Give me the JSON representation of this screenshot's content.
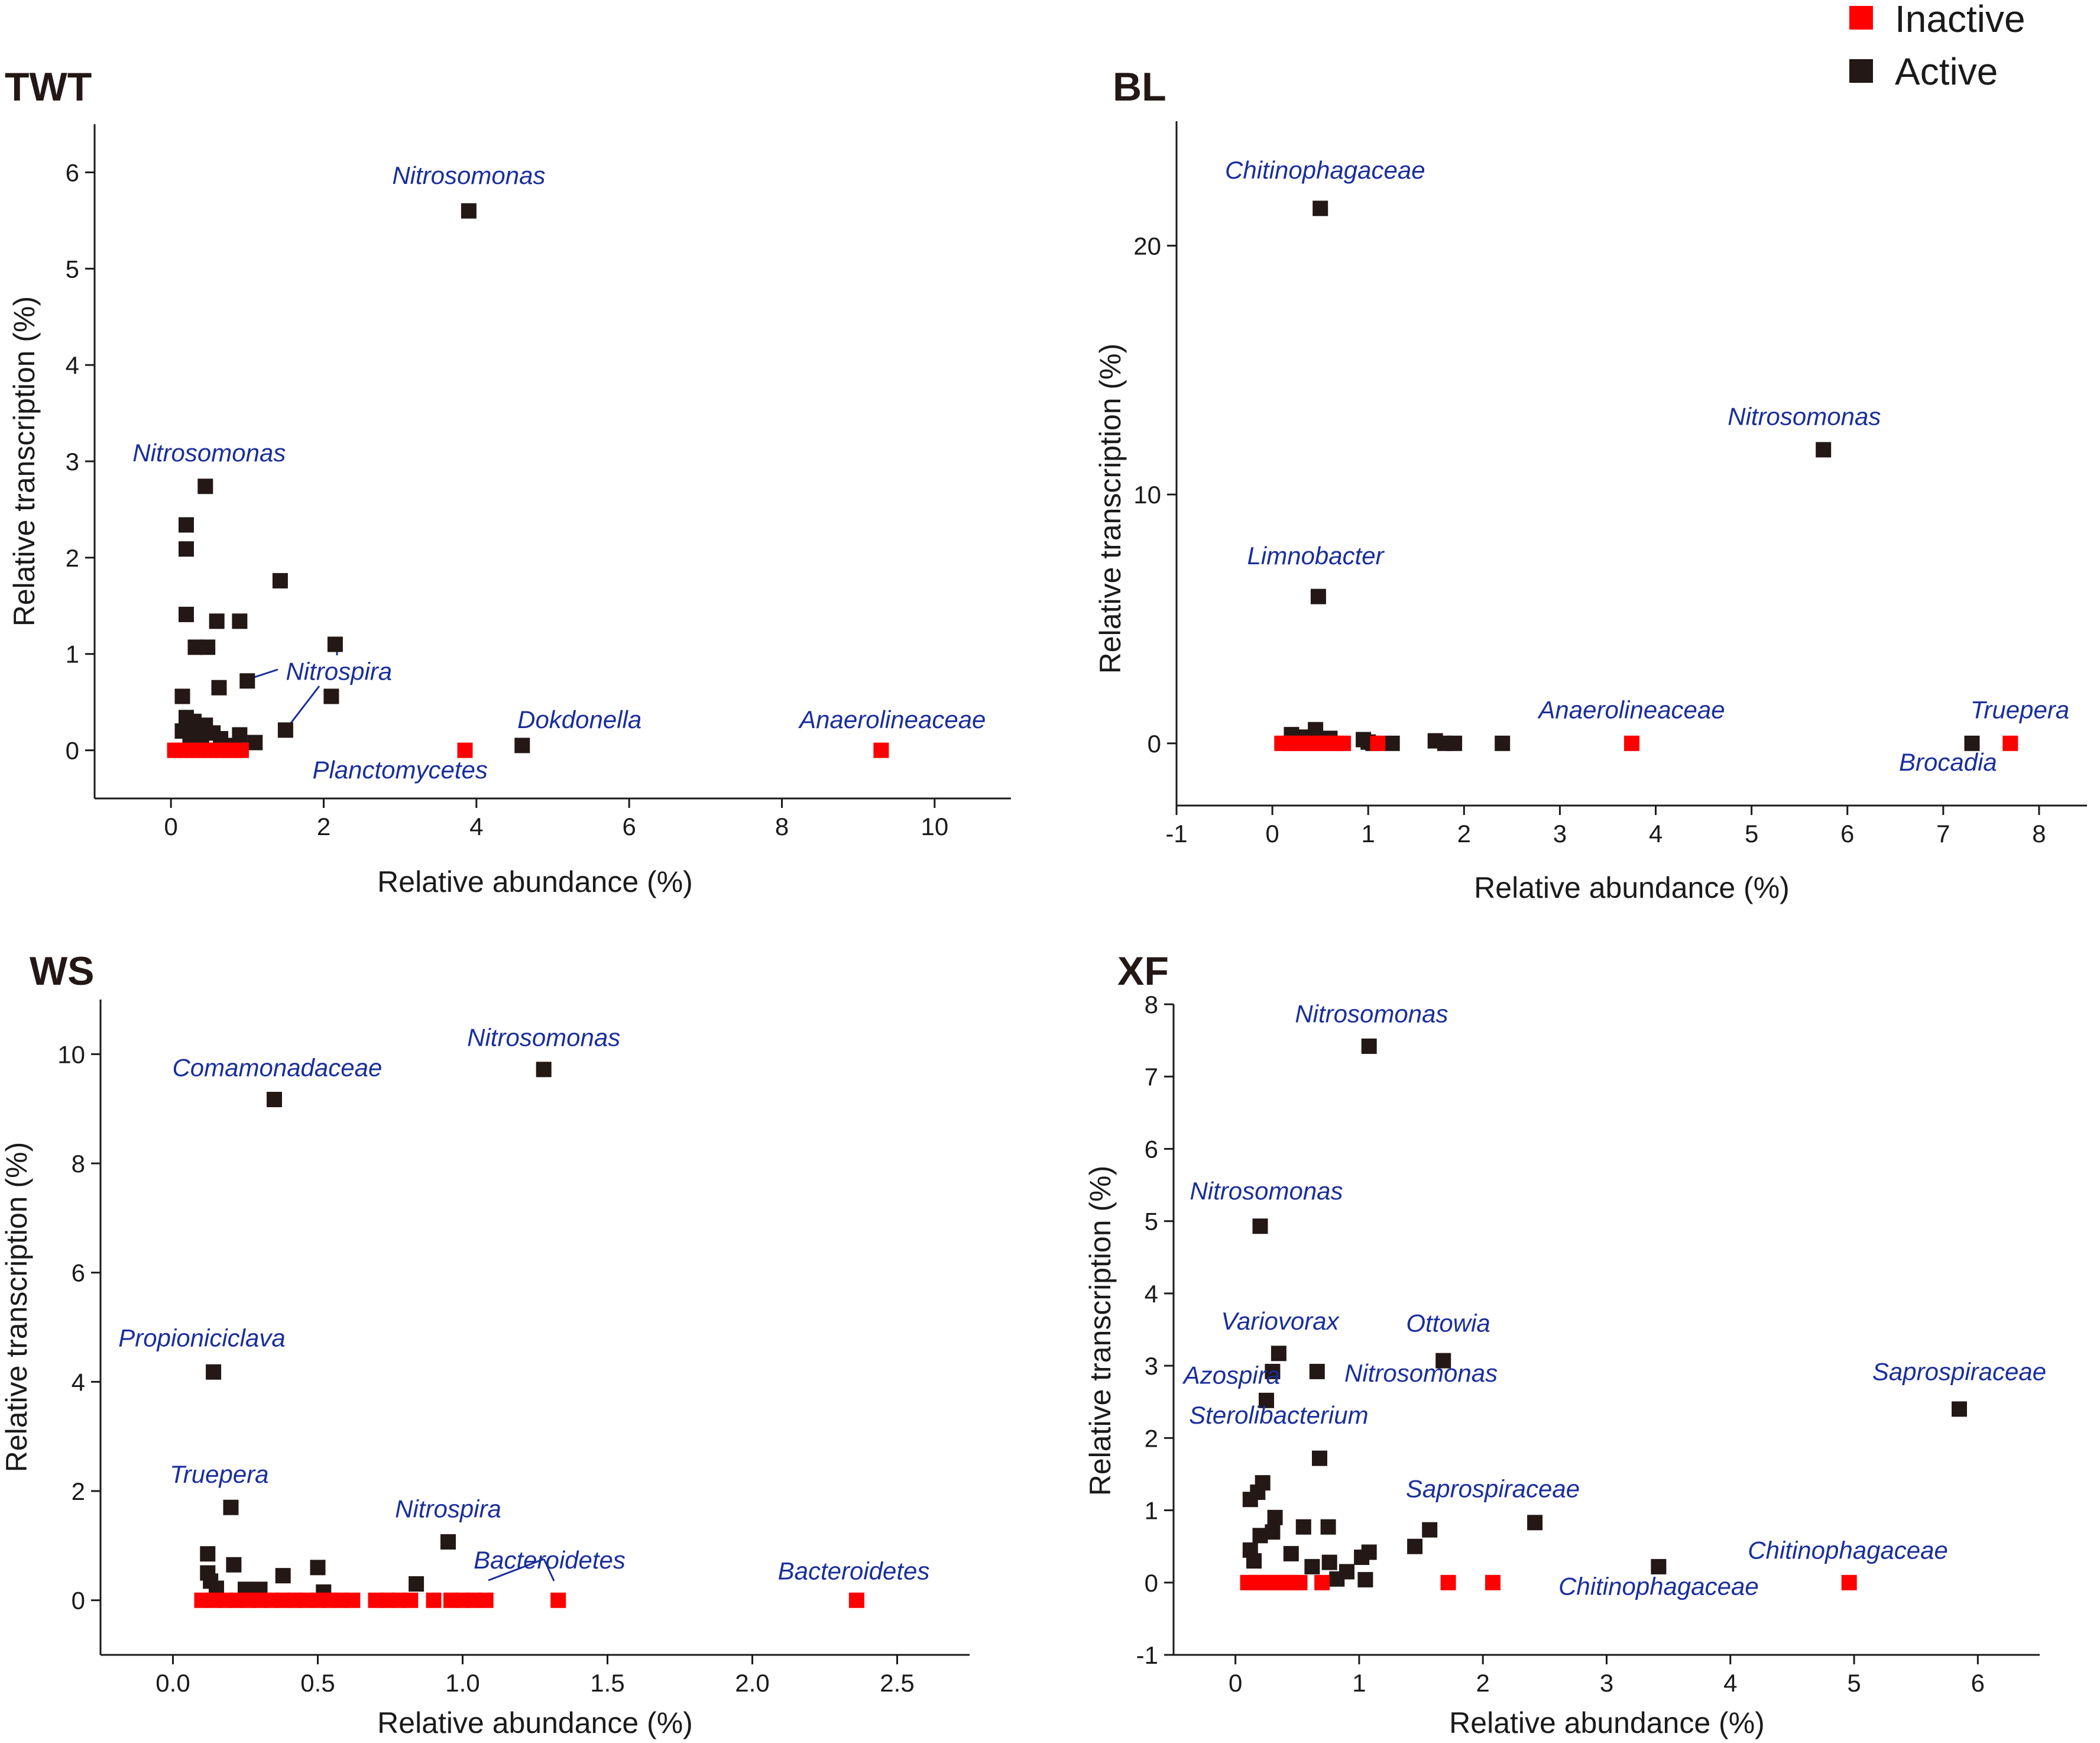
{
  "legend": {
    "items": [
      {
        "label": "Inactive",
        "color": "#ff0000"
      },
      {
        "label": "Active",
        "color": "#231815"
      }
    ]
  },
  "chart_data": [
    {
      "id": "TWT",
      "type": "scatter",
      "title": "TWT",
      "xlabel": "Relative abundance (%)",
      "ylabel": "Relative transcription (%)",
      "xlim": [
        -1,
        11
      ],
      "ylim": [
        -0.5,
        6.5
      ],
      "xticks": [
        0,
        2,
        4,
        6,
        8,
        10
      ],
      "yticks": [
        0,
        1,
        2,
        3,
        4,
        5,
        6
      ],
      "xtick_labels": [
        "0",
        "2",
        "4",
        "6",
        "8",
        "10"
      ],
      "ytick_labels": [
        "0",
        "1",
        "2",
        "3",
        "4",
        "5",
        "6"
      ],
      "series": [
        {
          "name": "Active",
          "color": "#231815",
          "points": [
            [
              3.9,
              5.6
            ],
            [
              0.45,
              2.74
            ],
            [
              0.2,
              2.34
            ],
            [
              0.2,
              2.09
            ],
            [
              0.2,
              1.41
            ],
            [
              1.43,
              1.76
            ],
            [
              0.6,
              1.34
            ],
            [
              0.9,
              1.34
            ],
            [
              0.32,
              1.07
            ],
            [
              0.48,
              1.07
            ],
            [
              2.15,
              1.1
            ],
            [
              1.0,
              0.72
            ],
            [
              0.63,
              0.65
            ],
            [
              2.1,
              0.56
            ],
            [
              0.15,
              0.56
            ],
            [
              1.5,
              0.21
            ],
            [
              4.6,
              0.05
            ],
            [
              0.2,
              0.34
            ],
            [
              0.3,
              0.3
            ],
            [
              0.35,
              0.22
            ],
            [
              0.45,
              0.26
            ],
            [
              0.55,
              0.18
            ],
            [
              0.65,
              0.12
            ],
            [
              0.9,
              0.16
            ],
            [
              1.1,
              0.08
            ],
            [
              0.25,
              0.12
            ],
            [
              0.15,
              0.2
            ],
            [
              0.4,
              0.1
            ],
            [
              0.8,
              0.05
            ]
          ]
        },
        {
          "name": "Inactive",
          "color": "#ff0000",
          "points": [
            [
              0.05,
              0.0
            ],
            [
              0.12,
              0.0
            ],
            [
              0.2,
              0.0
            ],
            [
              0.28,
              0.0
            ],
            [
              0.36,
              0.0
            ],
            [
              0.44,
              0.0
            ],
            [
              0.52,
              0.0
            ],
            [
              0.6,
              0.0
            ],
            [
              0.68,
              0.0
            ],
            [
              0.76,
              0.0
            ],
            [
              0.84,
              0.0
            ],
            [
              0.92,
              0.0
            ],
            [
              3.85,
              0.0
            ],
            [
              9.3,
              0.0
            ]
          ]
        }
      ],
      "annotations": [
        {
          "text": "Nitrosomonas",
          "x": 3.9,
          "y": 5.88
        },
        {
          "text": "Nitrosomonas",
          "x": 0.5,
          "y": 3.0
        },
        {
          "text": "Nitrospira",
          "x": 2.2,
          "y": 0.73
        },
        {
          "text": "Dokdonella",
          "x": 5.35,
          "y": 0.23
        },
        {
          "text": "Planctomycetes",
          "x": 3.0,
          "y": -0.29
        },
        {
          "text": "Anaerolineaceae",
          "x": 9.45,
          "y": 0.23
        }
      ]
    },
    {
      "id": "BL",
      "type": "scatter",
      "title": "BL",
      "xlabel": "Relative abundance (%)",
      "ylabel": "Relative transcription (%)",
      "xlim": [
        -1,
        8.5
      ],
      "ylim": [
        -2.5,
        25
      ],
      "xticks": [
        -1,
        0,
        1,
        2,
        3,
        4,
        5,
        6,
        7,
        8
      ],
      "yticks": [
        0,
        10,
        20
      ],
      "xtick_labels": [
        "-1",
        "0",
        "1",
        "2",
        "3",
        "4",
        "5",
        "6",
        "7",
        "8"
      ],
      "ytick_labels": [
        "0",
        "10",
        "20"
      ],
      "series": [
        {
          "name": "Active",
          "color": "#231815",
          "points": [
            [
              0.5,
              21.5
            ],
            [
              5.75,
              11.8
            ],
            [
              0.48,
              5.9
            ],
            [
              0.45,
              0.55
            ],
            [
              0.2,
              0.35
            ],
            [
              0.35,
              0.25
            ],
            [
              0.95,
              0.15
            ],
            [
              1.0,
              0.05
            ],
            [
              1.05,
              0.0
            ],
            [
              1.25,
              0.0
            ],
            [
              1.7,
              0.1
            ],
            [
              1.8,
              0.0
            ],
            [
              1.9,
              0.0
            ],
            [
              2.4,
              0.0
            ],
            [
              7.3,
              0.0
            ],
            [
              0.6,
              0.2
            ]
          ]
        },
        {
          "name": "Inactive",
          "color": "#ff0000",
          "points": [
            [
              0.1,
              0.0
            ],
            [
              0.18,
              0.0
            ],
            [
              0.26,
              0.0
            ],
            [
              0.34,
              0.0
            ],
            [
              0.42,
              0.0
            ],
            [
              0.5,
              0.0
            ],
            [
              0.58,
              0.0
            ],
            [
              0.66,
              0.0
            ],
            [
              0.74,
              0.0
            ],
            [
              1.1,
              0.0
            ],
            [
              3.75,
              0.0
            ],
            [
              7.7,
              0.0
            ]
          ]
        }
      ],
      "annotations": [
        {
          "text": "Chitinophagaceae",
          "x": 0.55,
          "y": 22.7
        },
        {
          "text": "Nitrosomonas",
          "x": 5.55,
          "y": 12.8
        },
        {
          "text": "Limnobacter",
          "x": 0.45,
          "y": 7.2
        },
        {
          "text": "Anaerolineaceae",
          "x": 3.75,
          "y": 1.0
        },
        {
          "text": "Truepera",
          "x": 7.8,
          "y": 1.0
        },
        {
          "text": "Brocadia",
          "x": 7.05,
          "y": -1.1
        }
      ]
    },
    {
      "id": "WS",
      "type": "scatter",
      "title": "WS",
      "xlabel": "Relative abundance (%)",
      "ylabel": "Relative transcription (%)",
      "xlim": [
        -0.25,
        2.75
      ],
      "ylim": [
        -1,
        11
      ],
      "xticks": [
        0.0,
        0.5,
        1.0,
        1.5,
        2.0,
        2.5
      ],
      "yticks": [
        0,
        2,
        4,
        6,
        8,
        10
      ],
      "xtick_labels": [
        "0.0",
        "0.5",
        "1.0",
        "1.5",
        "2.0",
        "2.5"
      ],
      "ytick_labels": [
        "0",
        "2",
        "4",
        "6",
        "8",
        "10"
      ],
      "series": [
        {
          "name": "Active",
          "color": "#231815",
          "points": [
            [
              1.28,
              9.72
            ],
            [
              0.35,
              9.17
            ],
            [
              0.14,
              4.18
            ],
            [
              0.2,
              1.7
            ],
            [
              0.95,
              1.07
            ],
            [
              0.12,
              0.85
            ],
            [
              0.21,
              0.65
            ],
            [
              0.5,
              0.6
            ],
            [
              0.12,
              0.5
            ],
            [
              0.38,
              0.45
            ],
            [
              0.13,
              0.35
            ],
            [
              0.84,
              0.3
            ],
            [
              0.25,
              0.2
            ],
            [
              0.3,
              0.2
            ],
            [
              0.52,
              0.15
            ],
            [
              0.15,
              0.22
            ]
          ]
        },
        {
          "name": "Inactive",
          "color": "#ff0000",
          "points": [
            [
              0.1,
              0.0
            ],
            [
              0.14,
              0.0
            ],
            [
              0.18,
              0.0
            ],
            [
              0.22,
              0.0
            ],
            [
              0.26,
              0.0
            ],
            [
              0.3,
              0.0
            ],
            [
              0.34,
              0.0
            ],
            [
              0.38,
              0.0
            ],
            [
              0.42,
              0.0
            ],
            [
              0.46,
              0.0
            ],
            [
              0.5,
              0.0
            ],
            [
              0.54,
              0.0
            ],
            [
              0.58,
              0.0
            ],
            [
              0.62,
              0.0
            ],
            [
              0.7,
              0.0
            ],
            [
              0.74,
              0.0
            ],
            [
              0.78,
              0.0
            ],
            [
              0.82,
              0.0
            ],
            [
              0.9,
              0.0
            ],
            [
              0.96,
              0.0
            ],
            [
              1.0,
              0.0
            ],
            [
              1.04,
              0.0
            ],
            [
              1.08,
              0.0
            ],
            [
              1.33,
              0.0
            ],
            [
              2.36,
              0.0
            ]
          ]
        }
      ],
      "annotations": [
        {
          "text": "Comamonadaceae",
          "x": 0.36,
          "y": 9.6
        },
        {
          "text": "Nitrosomonas",
          "x": 1.28,
          "y": 10.15
        },
        {
          "text": "Propioniciclava",
          "x": 0.1,
          "y": 4.65
        },
        {
          "text": "Truepera",
          "x": 0.16,
          "y": 2.15
        },
        {
          "text": "Nitrospira",
          "x": 0.95,
          "y": 1.52
        },
        {
          "text": "Bacteroidetes",
          "x": 1.3,
          "y": 0.58
        },
        {
          "text": "Bacteroidetes",
          "x": 2.35,
          "y": 0.38
        }
      ]
    },
    {
      "id": "XF",
      "type": "scatter",
      "title": "XF",
      "xlabel": "Relative abundance (%)",
      "ylabel": "Relative transcription (%)",
      "xlim": [
        -0.5,
        6.5
      ],
      "ylim": [
        -1,
        8
      ],
      "xticks": [
        0,
        1,
        2,
        3,
        4,
        5,
        6
      ],
      "yticks": [
        -1,
        0,
        1,
        2,
        3,
        4,
        5,
        6,
        7,
        8
      ],
      "xtick_labels": [
        "0",
        "1",
        "2",
        "3",
        "4",
        "5",
        "6"
      ],
      "ytick_labels": [
        "-1",
        "0",
        "1",
        "2",
        "3",
        "4",
        "5",
        "6",
        "7",
        "8"
      ],
      "series": [
        {
          "name": "Active",
          "color": "#231815",
          "points": [
            [
              1.08,
              7.42
            ],
            [
              0.2,
              4.93
            ],
            [
              0.35,
              3.17
            ],
            [
              0.3,
              2.92
            ],
            [
              0.66,
              2.92
            ],
            [
              1.68,
              3.07
            ],
            [
              0.25,
              2.52
            ],
            [
              5.85,
              2.4
            ],
            [
              0.68,
              1.72
            ],
            [
              2.42,
              0.83
            ],
            [
              1.57,
              0.73
            ],
            [
              1.45,
              0.5
            ],
            [
              3.42,
              0.22
            ],
            [
              0.12,
              1.15
            ],
            [
              0.18,
              1.25
            ],
            [
              0.22,
              1.38
            ],
            [
              0.32,
              0.9
            ],
            [
              0.2,
              0.65
            ],
            [
              0.55,
              0.77
            ],
            [
              0.75,
              0.77
            ],
            [
              0.45,
              0.4
            ],
            [
              1.08,
              0.42
            ],
            [
              1.02,
              0.35
            ],
            [
              0.12,
              0.45
            ],
            [
              0.15,
              0.3
            ],
            [
              0.3,
              0.7
            ],
            [
              0.62,
              0.22
            ],
            [
              0.76,
              0.28
            ],
            [
              0.82,
              0.05
            ],
            [
              0.9,
              0.15
            ],
            [
              1.05,
              0.04
            ]
          ]
        },
        {
          "name": "Inactive",
          "color": "#ff0000",
          "points": [
            [
              0.1,
              0.0
            ],
            [
              0.16,
              0.0
            ],
            [
              0.22,
              0.0
            ],
            [
              0.28,
              0.0
            ],
            [
              0.34,
              0.0
            ],
            [
              0.4,
              0.0
            ],
            [
              0.46,
              0.0
            ],
            [
              0.52,
              0.0
            ],
            [
              0.7,
              0.0
            ],
            [
              1.72,
              0.0
            ],
            [
              2.08,
              0.0
            ],
            [
              4.96,
              0.0
            ]
          ]
        }
      ],
      "annotations": [
        {
          "text": "Nitrosomonas",
          "x": 1.1,
          "y": 7.75
        },
        {
          "text": "Nitrosomonas",
          "x": 0.25,
          "y": 5.3
        },
        {
          "text": "Variovorax",
          "x": 0.36,
          "y": 3.5
        },
        {
          "text": "Ottowia",
          "x": 1.72,
          "y": 3.47
        },
        {
          "text": "Azospira",
          "x": -0.03,
          "y": 2.75
        },
        {
          "text": "Nitrosomonas",
          "x": 1.5,
          "y": 2.78
        },
        {
          "text": "Sterolibacterium",
          "x": 0.35,
          "y": 2.2
        },
        {
          "text": "Saprospiraceae",
          "x": 5.85,
          "y": 2.8
        },
        {
          "text": "Saprospiraceae",
          "x": 2.08,
          "y": 1.18
        },
        {
          "text": "Chitinophagaceae",
          "x": 4.95,
          "y": 0.33
        },
        {
          "text": "Chitinophagaceae",
          "x": 3.42,
          "y": -0.17
        }
      ]
    }
  ]
}
